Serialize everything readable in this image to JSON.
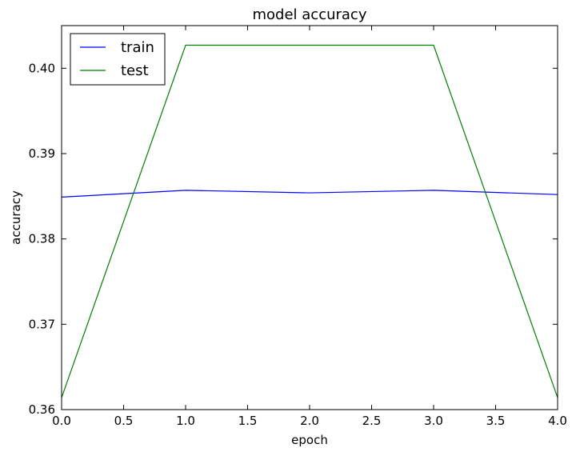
{
  "chart_data": {
    "type": "line",
    "title": "model accuracy",
    "xlabel": "epoch",
    "ylabel": "accuracy",
    "xlim": [
      0.0,
      4.0
    ],
    "ylim": [
      0.36,
      0.405
    ],
    "xticks": [
      "0.0",
      "0.5",
      "1.0",
      "1.5",
      "2.0",
      "2.5",
      "3.0",
      "3.5",
      "4.0"
    ],
    "yticks": [
      "0.36",
      "0.37",
      "0.38",
      "0.39",
      "0.40"
    ],
    "x": [
      0,
      1,
      2,
      3,
      4
    ],
    "series": [
      {
        "name": "train",
        "color": "#0000ff",
        "values": [
          0.3849,
          0.3857,
          0.3854,
          0.3857,
          0.3852
        ]
      },
      {
        "name": "test",
        "color": "#008000",
        "values": [
          0.3614,
          0.4027,
          0.4027,
          0.4027,
          0.3614
        ]
      }
    ],
    "grid": false,
    "legend_position": "upper-left"
  }
}
